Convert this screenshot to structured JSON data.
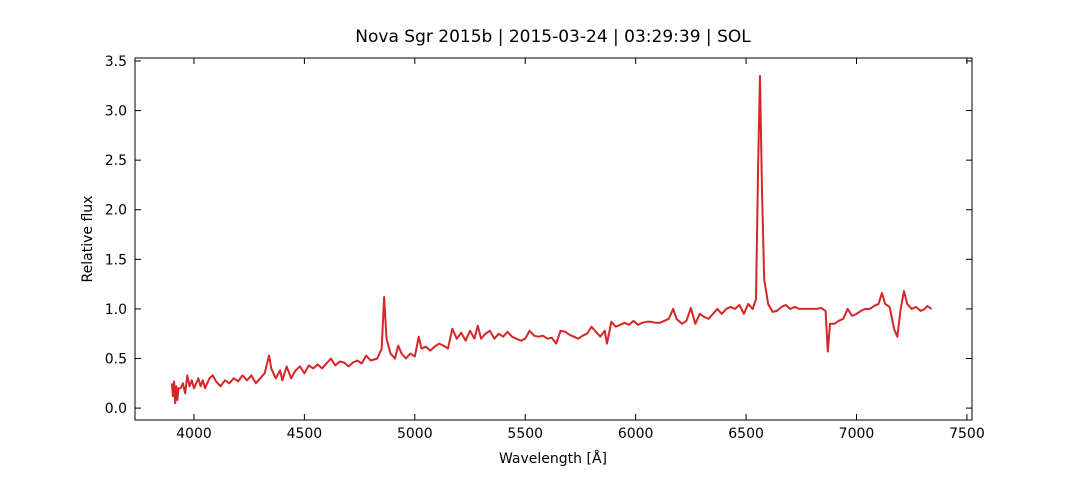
{
  "chart_data": {
    "type": "line",
    "title": "Nova Sgr 2015b | 2015-03-24 | 03:29:39 | SOL",
    "x_label": "Wavelength [Å]",
    "y_label": "Relative flux",
    "color": "#d62728",
    "xlim": [
      3733,
      7523
    ],
    "ylim": [
      -0.12,
      3.53
    ],
    "xticks": [
      4000,
      4500,
      5000,
      5500,
      6000,
      6500,
      7000,
      7500
    ],
    "yticks": [
      {
        "value": 0,
        "label": "0.0"
      },
      0.5,
      {
        "value": 1,
        "label": "1.0"
      },
      1.5,
      {
        "value": 2,
        "label": "2.0"
      },
      2.5,
      {
        "value": 3,
        "label": "3.0"
      },
      3.5
    ],
    "x": [
      3900,
      3905,
      3910,
      3915,
      3920,
      3925,
      3930,
      3940,
      3950,
      3960,
      3970,
      3980,
      3990,
      4000,
      4010,
      4020,
      4030,
      4040,
      4050,
      4070,
      4085,
      4100,
      4120,
      4140,
      4160,
      4180,
      4200,
      4220,
      4240,
      4260,
      4280,
      4300,
      4320,
      4340,
      4350,
      4370,
      4390,
      4400,
      4420,
      4440,
      4460,
      4480,
      4500,
      4520,
      4540,
      4560,
      4580,
      4600,
      4620,
      4640,
      4660,
      4680,
      4700,
      4720,
      4740,
      4760,
      4780,
      4800,
      4830,
      4850,
      4861,
      4872,
      4890,
      4910,
      4925,
      4940,
      4960,
      4980,
      5000,
      5018,
      5030,
      5050,
      5070,
      5090,
      5110,
      5130,
      5150,
      5170,
      5190,
      5210,
      5230,
      5250,
      5270,
      5285,
      5300,
      5320,
      5340,
      5360,
      5380,
      5400,
      5420,
      5440,
      5460,
      5480,
      5500,
      5520,
      5540,
      5560,
      5580,
      5600,
      5620,
      5640,
      5660,
      5680,
      5700,
      5720,
      5740,
      5760,
      5780,
      5800,
      5820,
      5840,
      5860,
      5870,
      5890,
      5910,
      5930,
      5950,
      5970,
      5990,
      6010,
      6030,
      6050,
      6070,
      6090,
      6110,
      6130,
      6150,
      6170,
      6185,
      6210,
      6230,
      6250,
      6270,
      6290,
      6310,
      6330,
      6350,
      6370,
      6390,
      6410,
      6430,
      6450,
      6470,
      6490,
      6510,
      6530,
      6545,
      6555,
      6563,
      6572,
      6582,
      6600,
      6620,
      6640,
      6660,
      6680,
      6700,
      6720,
      6740,
      6760,
      6780,
      6800,
      6820,
      6840,
      6860,
      6870,
      6880,
      6900,
      6920,
      6940,
      6960,
      6980,
      7000,
      7020,
      7040,
      7060,
      7080,
      7100,
      7115,
      7130,
      7150,
      7170,
      7185,
      7200,
      7215,
      7230,
      7250,
      7270,
      7290,
      7310,
      7320,
      7340
    ],
    "values": [
      0.25,
      0.12,
      0.27,
      0.05,
      0.22,
      0.08,
      0.2,
      0.2,
      0.25,
      0.15,
      0.33,
      0.22,
      0.28,
      0.2,
      0.25,
      0.3,
      0.22,
      0.28,
      0.2,
      0.3,
      0.33,
      0.27,
      0.22,
      0.28,
      0.25,
      0.3,
      0.27,
      0.33,
      0.28,
      0.33,
      0.25,
      0.3,
      0.35,
      0.53,
      0.4,
      0.3,
      0.38,
      0.28,
      0.42,
      0.3,
      0.38,
      0.42,
      0.35,
      0.43,
      0.4,
      0.44,
      0.4,
      0.45,
      0.5,
      0.43,
      0.47,
      0.46,
      0.42,
      0.46,
      0.48,
      0.45,
      0.53,
      0.48,
      0.5,
      0.6,
      1.12,
      0.7,
      0.55,
      0.5,
      0.63,
      0.55,
      0.5,
      0.55,
      0.52,
      0.72,
      0.6,
      0.62,
      0.58,
      0.62,
      0.65,
      0.63,
      0.6,
      0.8,
      0.7,
      0.76,
      0.68,
      0.78,
      0.7,
      0.83,
      0.7,
      0.75,
      0.78,
      0.7,
      0.75,
      0.72,
      0.77,
      0.72,
      0.7,
      0.68,
      0.7,
      0.78,
      0.73,
      0.72,
      0.73,
      0.7,
      0.71,
      0.65,
      0.78,
      0.77,
      0.74,
      0.72,
      0.7,
      0.73,
      0.75,
      0.82,
      0.77,
      0.72,
      0.78,
      0.65,
      0.87,
      0.82,
      0.84,
      0.86,
      0.84,
      0.88,
      0.84,
      0.86,
      0.87,
      0.87,
      0.86,
      0.86,
      0.88,
      0.9,
      1.0,
      0.9,
      0.85,
      0.88,
      1.01,
      0.85,
      0.95,
      0.92,
      0.9,
      0.95,
      1.0,
      0.95,
      1.0,
      1.02,
      1.0,
      1.04,
      0.95,
      1.05,
      1.0,
      1.1,
      2.5,
      3.35,
      2.2,
      1.3,
      1.05,
      0.97,
      0.98,
      1.02,
      1.04,
      1.0,
      1.02,
      1.0,
      1.0,
      1.0,
      1.0,
      1.0,
      1.01,
      0.98,
      0.57,
      0.85,
      0.85,
      0.88,
      0.9,
      1.0,
      0.93,
      0.95,
      0.98,
      1.0,
      1.0,
      1.03,
      1.05,
      1.16,
      1.05,
      1.02,
      0.8,
      0.72,
      1.0,
      1.18,
      1.05,
      1.0,
      1.02,
      0.98,
      1.0,
      1.03,
      1.0
    ]
  }
}
